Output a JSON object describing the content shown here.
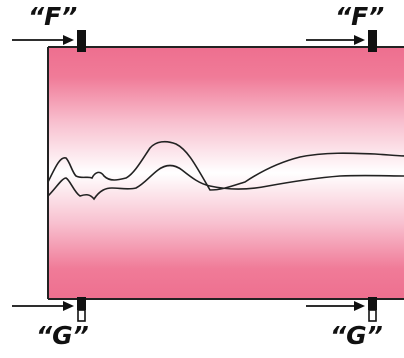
{
  "labels": {
    "top_left": "“F”",
    "top_right": "“F”",
    "bottom_left": "“G”",
    "bottom_right": "“G”"
  },
  "colors": {
    "band_edge": "#ee6f8f",
    "band_center": "#ffffff",
    "border": "#222222",
    "markers": "#111111"
  }
}
